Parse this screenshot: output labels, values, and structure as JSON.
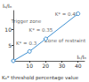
{
  "chart_data": {
    "type": "line",
    "x_label": "Iₖ/Iₙ",
    "y_label": "Iₛ/Iₙ",
    "x": [
      0,
      10,
      20,
      40
    ],
    "values": [
      0,
      3,
      7,
      15
    ],
    "color": "#3d8fd1",
    "marker": "circle",
    "xlim": [
      0,
      44
    ],
    "xticks": [
      10,
      20,
      30,
      40
    ],
    "ylim": [
      0,
      16
    ],
    "yticks": [
      5,
      10
    ],
    "grid": false,
    "annotations": [
      {
        "text": "Trigger zone",
        "x": 8,
        "y": 12.5
      },
      {
        "text": "Zone of restraint",
        "x": 32,
        "y": 6.5
      },
      {
        "text": "K* = 0.3",
        "x": 8,
        "y": 5.5
      },
      {
        "text": "K* = 0.35",
        "x": 17,
        "y": 9.8
      },
      {
        "text": "K* = 0.45",
        "x": 33,
        "y": 15
      }
    ],
    "footnote": "K₀* threshold percentage value"
  }
}
